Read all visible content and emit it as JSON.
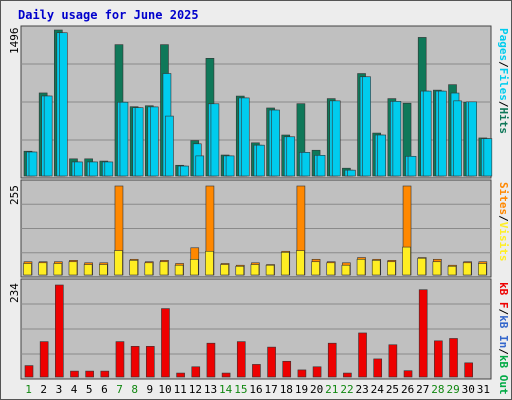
{
  "title": "Daily usage for June 2025",
  "colors": {
    "hits": "#0f7859",
    "files": "#00ccee",
    "pages": "#00ccee",
    "sites": "#ff8800",
    "visits": "#ffee22",
    "kbf": "#ee0000",
    "kbin": "#3366cc",
    "kbout": "#00aa44",
    "weekend_day": "#118811",
    "panel_bg": "#c0c0c0"
  },
  "labels": {
    "top": [
      "Pages",
      "/",
      "Files",
      "/",
      "Hits"
    ],
    "mid": [
      "Sites",
      "/",
      "Visits"
    ],
    "bot": [
      "kB F",
      "/",
      "kB In",
      "/",
      "kB Out"
    ]
  },
  "chart_data": [
    {
      "type": "bar",
      "panel": "top",
      "ymax_label": "1496",
      "ylim": [
        0,
        1496
      ],
      "grid": true,
      "categories": [
        "1",
        "2",
        "3",
        "4",
        "5",
        "6",
        "7",
        "8",
        "9",
        "10",
        "11",
        "12",
        "13",
        "14",
        "15",
        "16",
        "17",
        "18",
        "19",
        "20",
        "21",
        "22",
        "23",
        "24",
        "25",
        "26",
        "27",
        "28",
        "29",
        "30",
        "31"
      ],
      "series": [
        {
          "name": "Hits",
          "values": [
            254,
            851,
            1496,
            176,
            176,
            153,
            1346,
            710,
            720,
            1346,
            110,
            363,
            1206,
            215,
            819,
            340,
            697,
            420,
            741,
            264,
            793,
            80,
            1050,
            440,
            793,
            746,
            1420,
            880,
            936,
            756,
            390
          ]
        },
        {
          "name": "Files",
          "values": [
            246,
            820,
            1468,
            144,
            144,
            144,
            756,
            700,
            708,
            1050,
            102,
            330,
            740,
            206,
            800,
            316,
            676,
            402,
            242,
            212,
            770,
            60,
            1017,
            420,
            765,
            202,
            870,
            870,
            850,
            760,
            383
          ]
        },
        {
          "name": "Pages",
          "values": [
            246,
            820,
            1468,
            144,
            144,
            144,
            756,
            700,
            708,
            614,
            102,
            206,
            740,
            206,
            800,
            316,
            676,
            402,
            242,
            212,
            770,
            60,
            1017,
            420,
            765,
            202,
            870,
            870,
            770,
            760,
            383
          ]
        }
      ]
    },
    {
      "type": "bar",
      "panel": "mid",
      "ymax_label": "255",
      "ylim": [
        0,
        255
      ],
      "grid": true,
      "categories": [
        "1",
        "2",
        "3",
        "4",
        "5",
        "6",
        "7",
        "8",
        "9",
        "10",
        "11",
        "12",
        "13",
        "14",
        "15",
        "16",
        "17",
        "18",
        "19",
        "20",
        "21",
        "22",
        "23",
        "24",
        "25",
        "26",
        "27",
        "28",
        "29",
        "30",
        "31"
      ],
      "series": [
        {
          "name": "Sites",
          "values": [
            38,
            38,
            38,
            42,
            35,
            35,
            255,
            45,
            38,
            42,
            33,
            78,
            255,
            33,
            28,
            35,
            30,
            68,
            255,
            45,
            38,
            35,
            50,
            45,
            42,
            255,
            50,
            45,
            28,
            38,
            38
          ]
        },
        {
          "name": "Visits",
          "values": [
            33,
            35,
            33,
            38,
            30,
            30,
            70,
            42,
            35,
            38,
            28,
            45,
            68,
            30,
            25,
            30,
            28,
            65,
            70,
            38,
            35,
            28,
            45,
            42,
            38,
            80,
            48,
            38,
            25,
            35,
            33
          ]
        }
      ]
    },
    {
      "type": "bar",
      "panel": "bottom",
      "ymax_label": "234",
      "ylim": [
        0,
        234
      ],
      "grid": true,
      "categories": [
        "1",
        "2",
        "3",
        "4",
        "5",
        "6",
        "7",
        "8",
        "9",
        "10",
        "11",
        "12",
        "13",
        "14",
        "15",
        "16",
        "17",
        "18",
        "19",
        "20",
        "21",
        "22",
        "23",
        "24",
        "25",
        "26",
        "27",
        "28",
        "29",
        "30",
        "31"
      ],
      "series": [
        {
          "name": "kB F",
          "values": [
            29,
            90,
            234,
            15,
            15,
            15,
            90,
            78,
            78,
            174,
            10,
            26,
            86,
            10,
            90,
            32,
            76,
            40,
            18,
            26,
            86,
            10,
            112,
            46,
            82,
            16,
            222,
            92,
            98,
            36,
            0
          ]
        }
      ]
    }
  ]
}
